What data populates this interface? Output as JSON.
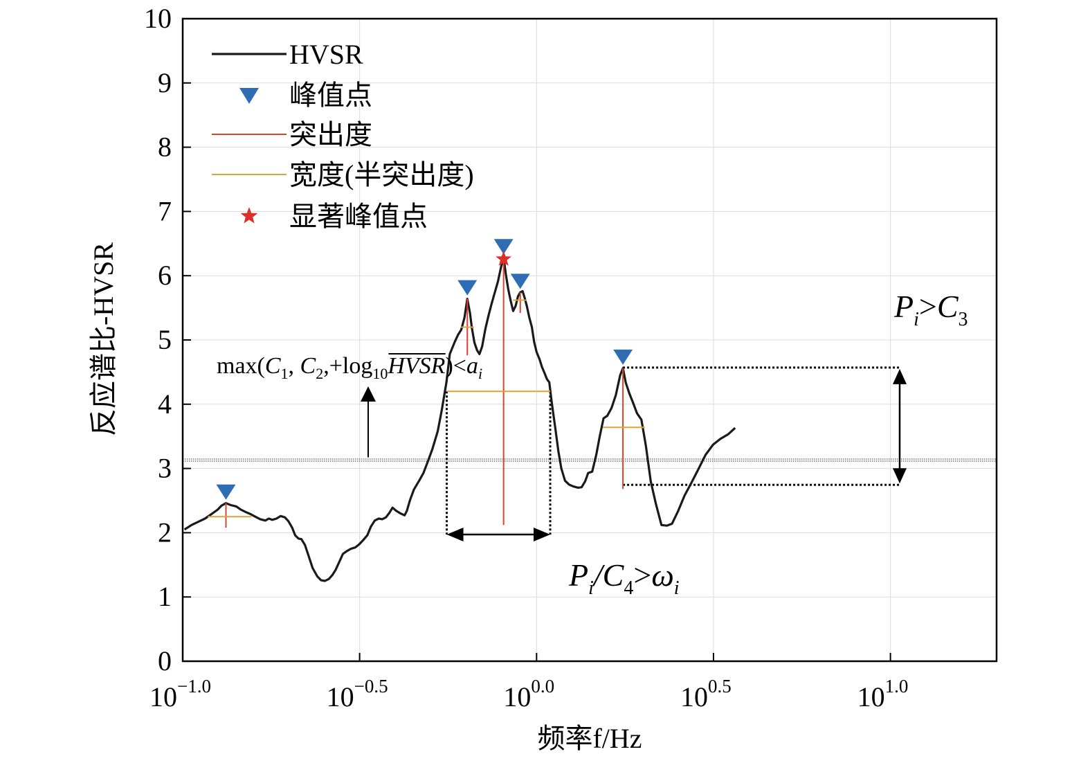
{
  "chart_data": {
    "type": "line",
    "title": "",
    "xlabel": "频率f/Hz",
    "ylabel": "反应谱比-HVSR",
    "x_scale": "log10",
    "xlim": [
      0.1,
      19.95
    ],
    "ylim": [
      0,
      10
    ],
    "grid": true,
    "legend_position": "top-left",
    "x_ticks": [
      0.1,
      0.3162,
      1,
      3.162,
      10
    ],
    "x_tick_labels": [
      {
        "base": "10",
        "exp": "−1.0"
      },
      {
        "base": "10",
        "exp": "−0.5"
      },
      {
        "base": "10",
        "exp": "0.0"
      },
      {
        "base": "10",
        "exp": "0.5"
      },
      {
        "base": "10",
        "exp": "1.0"
      }
    ],
    "y_ticks": [
      0,
      1,
      2,
      3,
      4,
      5,
      6,
      7,
      8,
      9,
      10
    ],
    "y_tick_labels": [
      "0",
      "1",
      "2",
      "3",
      "4",
      "5",
      "6",
      "7",
      "8",
      "9",
      "10"
    ],
    "legend": [
      {
        "label": "HVSR",
        "kind": "line",
        "color": "#1a1a1a"
      },
      {
        "label": "峰值点",
        "kind": "triangle",
        "color": "#2e6db4"
      },
      {
        "label": "突出度",
        "kind": "line",
        "color": "#d9452b"
      },
      {
        "label": "宽度(半突出度)",
        "kind": "line",
        "color": "#d9a43a"
      },
      {
        "label": "显著峰值点",
        "kind": "star",
        "color": "#d9302b"
      }
    ],
    "series": [
      {
        "name": "HVSR",
        "color": "#1a1a1a",
        "points": [
          [
            0.1012,
            2.05
          ],
          [
            0.1059,
            2.12
          ],
          [
            0.1107,
            2.17
          ],
          [
            0.1156,
            2.22
          ],
          [
            0.1213,
            2.3
          ],
          [
            0.1256,
            2.36
          ],
          [
            0.1287,
            2.42
          ],
          [
            0.1325,
            2.46
          ],
          [
            0.1367,
            2.43
          ],
          [
            0.1417,
            2.41
          ],
          [
            0.1459,
            2.36
          ],
          [
            0.1509,
            2.32
          ],
          [
            0.1555,
            2.29
          ],
          [
            0.1603,
            2.25
          ],
          [
            0.1657,
            2.21
          ],
          [
            0.1712,
            2.19
          ],
          [
            0.1751,
            2.22
          ],
          [
            0.1791,
            2.2
          ],
          [
            0.1841,
            2.22
          ],
          [
            0.1891,
            2.26
          ],
          [
            0.1943,
            2.24
          ],
          [
            0.1989,
            2.18
          ],
          [
            0.2038,
            2.08
          ],
          [
            0.2079,
            1.96
          ],
          [
            0.2123,
            1.91
          ],
          [
            0.2165,
            1.9
          ],
          [
            0.2215,
            1.81
          ],
          [
            0.2265,
            1.65
          ],
          [
            0.2329,
            1.45
          ],
          [
            0.2401,
            1.32
          ],
          [
            0.2461,
            1.26
          ],
          [
            0.2523,
            1.25
          ],
          [
            0.2588,
            1.28
          ],
          [
            0.2648,
            1.34
          ],
          [
            0.2704,
            1.42
          ],
          [
            0.2772,
            1.55
          ],
          [
            0.2836,
            1.67
          ],
          [
            0.2903,
            1.71
          ],
          [
            0.2987,
            1.75
          ],
          [
            0.3072,
            1.77
          ],
          [
            0.3154,
            1.82
          ],
          [
            0.3242,
            1.89
          ],
          [
            0.3325,
            1.96
          ],
          [
            0.3399,
            2.09
          ],
          [
            0.3489,
            2.19
          ],
          [
            0.3581,
            2.22
          ],
          [
            0.3666,
            2.21
          ],
          [
            0.3754,
            2.24
          ],
          [
            0.3839,
            2.31
          ],
          [
            0.3918,
            2.39
          ],
          [
            0.4012,
            2.34
          ],
          [
            0.4127,
            2.3
          ],
          [
            0.4236,
            2.27
          ],
          [
            0.4299,
            2.34
          ],
          [
            0.4385,
            2.5
          ],
          [
            0.4501,
            2.67
          ],
          [
            0.4669,
            2.82
          ],
          [
            0.4791,
            2.93
          ],
          [
            0.4916,
            3.09
          ],
          [
            0.5075,
            3.3
          ],
          [
            0.5256,
            3.58
          ],
          [
            0.5393,
            3.9
          ],
          [
            0.5565,
            4.35
          ],
          [
            0.5684,
            4.78
          ],
          [
            0.5873,
            4.97
          ],
          [
            0.5998,
            5.08
          ],
          [
            0.6126,
            5.16
          ],
          [
            0.6257,
            5.35
          ],
          [
            0.6372,
            5.64
          ],
          [
            0.6485,
            5.42
          ],
          [
            0.6563,
            5.19
          ],
          [
            0.6672,
            4.96
          ],
          [
            0.6789,
            4.84
          ],
          [
            0.6895,
            4.78
          ],
          [
            0.7017,
            4.9
          ],
          [
            0.7164,
            5.17
          ],
          [
            0.7317,
            5.38
          ],
          [
            0.7467,
            5.57
          ],
          [
            0.7612,
            5.73
          ],
          [
            0.7776,
            5.91
          ],
          [
            0.7942,
            6.14
          ],
          [
            0.8069,
            6.28
          ],
          [
            0.8196,
            6.01
          ],
          [
            0.8316,
            5.79
          ],
          [
            0.8442,
            5.62
          ],
          [
            0.8588,
            5.45
          ],
          [
            0.8729,
            5.53
          ],
          [
            0.8863,
            5.68
          ],
          [
            0.8993,
            5.74
          ],
          [
            0.9128,
            5.76
          ],
          [
            0.9264,
            5.65
          ],
          [
            0.9393,
            5.52
          ],
          [
            0.9538,
            5.35
          ],
          [
            0.9696,
            5.2
          ],
          [
            0.9844,
            4.97
          ],
          [
            1.0004,
            4.81
          ],
          [
            1.0193,
            4.7
          ],
          [
            1.0356,
            4.58
          ],
          [
            1.0521,
            4.49
          ],
          [
            1.07,
            4.39
          ],
          [
            1.0863,
            4.34
          ],
          [
            1.1037,
            4.03
          ],
          [
            1.1281,
            3.65
          ],
          [
            1.1522,
            3.27
          ],
          [
            1.1748,
            3.0
          ],
          [
            1.2034,
            2.81
          ],
          [
            1.2353,
            2.75
          ],
          [
            1.2713,
            2.72
          ],
          [
            1.3102,
            2.7
          ],
          [
            1.3412,
            2.71
          ],
          [
            1.3714,
            2.8
          ],
          [
            1.3993,
            2.93
          ],
          [
            1.4363,
            2.95
          ],
          [
            1.4757,
            3.22
          ],
          [
            1.5086,
            3.5
          ],
          [
            1.5461,
            3.78
          ],
          [
            1.5845,
            3.82
          ],
          [
            1.6288,
            3.94
          ],
          [
            1.6743,
            4.14
          ],
          [
            1.7227,
            4.45
          ],
          [
            1.7541,
            4.56
          ],
          [
            1.7859,
            4.34
          ],
          [
            1.8286,
            4.17
          ],
          [
            1.8737,
            4.02
          ],
          [
            1.9221,
            3.86
          ],
          [
            1.9778,
            3.76
          ],
          [
            2.0368,
            3.35
          ],
          [
            2.1024,
            2.8
          ],
          [
            2.1732,
            2.45
          ],
          [
            2.2546,
            2.12
          ],
          [
            2.3341,
            2.11
          ],
          [
            2.4141,
            2.14
          ],
          [
            2.5131,
            2.34
          ],
          [
            2.6203,
            2.58
          ],
          [
            2.7403,
            2.78
          ],
          [
            2.8668,
            2.99
          ],
          [
            3.0019,
            3.21
          ],
          [
            3.1522,
            3.37
          ],
          [
            3.3066,
            3.46
          ],
          [
            3.4754,
            3.53
          ],
          [
            3.6399,
            3.63
          ]
        ]
      }
    ],
    "peaks": [
      {
        "x": 0.1325,
        "y": 2.46,
        "prominence_from": 2.08,
        "width_y": 2.25,
        "width_from": 0.1179,
        "width_to": 0.1564
      },
      {
        "x": 0.6372,
        "y": 5.64,
        "prominence_from": 4.76,
        "width_y": 5.2,
        "width_from": 0.6114,
        "width_to": 0.6652
      },
      {
        "x": 0.8069,
        "y": 6.28,
        "prominence_from": 2.12,
        "width_y": 4.2,
        "width_from": 0.5574,
        "width_to": 1.0929
      },
      {
        "x": 0.8993,
        "y": 5.74,
        "prominence_from": 5.42,
        "width_y": 5.62,
        "width_from": 0.8584,
        "width_to": 0.9369
      },
      {
        "x": 1.7541,
        "y": 4.56,
        "prominence_from": 2.68,
        "width_y": 3.64,
        "width_from": 1.5385,
        "width_to": 2.0224
      }
    ],
    "significant_peak": {
      "x": 0.8069,
      "y": 6.28
    },
    "threshold_y": 3.13,
    "annotations": {
      "threshold_formula": {
        "pre": "max(",
        "c1": "C",
        "c1_sub": "1",
        "mid1": ", ",
        "c2": "C",
        "c2_sub": "2",
        "mid2": ",+log",
        "log_sub": "10",
        "hvsr": "HVSR",
        "close": ")<",
        "a": "a",
        "a_sub": "i"
      },
      "width_formula": {
        "p": "P",
        "p_sub": "i",
        "c": "/C",
        "c_sub": "4",
        "gt": ">",
        "w": "ω",
        "w_sub": "i"
      },
      "prominence_formula": {
        "p": "P",
        "p_sub": "i",
        "gt": ">",
        "c": "C",
        "c_sub": "3"
      }
    }
  }
}
